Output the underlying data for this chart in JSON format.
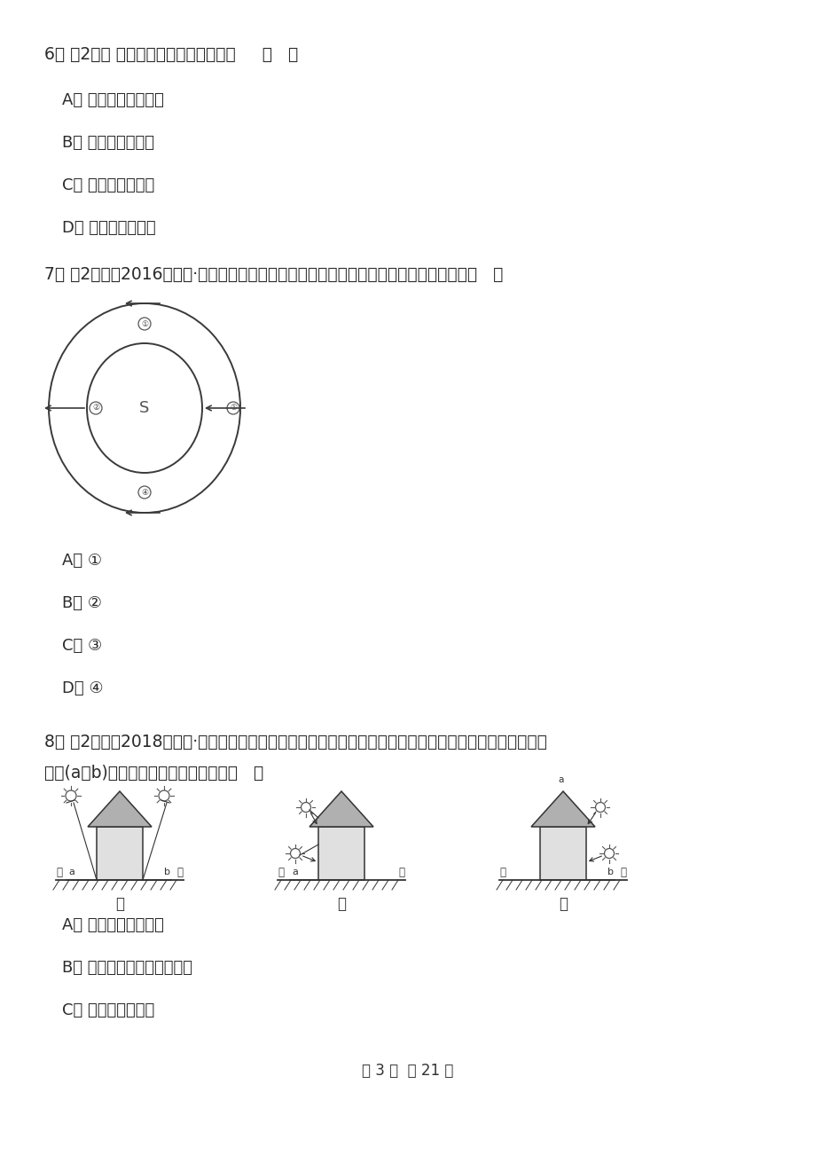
{
  "bg_color": "#ffffff",
  "text_color": "#2a2a2a",
  "q6_text": "6． （2分） 地球内部圈层划分的依据是     （   ）",
  "q6_a": "A． 地震波速度的变化",
  "q6_b": "B． 温度的垂直变化",
  "q6_c": "C． 内部压力的变化",
  "q6_d": "D． 物质密度的变化",
  "q7_text": "7． （2分）（2016高二下·湖南期中）读南极上空俧视图，四个平行箭头中指向东方的是（   ）",
  "q7_a": "A． ①",
  "q7_b": "B． ②",
  "q7_c": "C． ③",
  "q7_d": "D． ④",
  "q8_line1": "8． （2分）（2018高一上·张掘期末）甲、乙、丙是三幅地处不同纬度的三座房屋在二至日的正午阳光照射",
  "q8_line2": "情况(a或b)，对三地位置判断正确的是（   ）",
  "q8_a": "A． 三地都位于北半球",
  "q8_b": "B． 甲地位于南北回归线之间",
  "q8_c": "C． 乙地位于南温带",
  "footer": "第 3 页  共 21 页",
  "label_jia": "甲",
  "label_yi": "乙",
  "label_bing": "丙",
  "label_nan": "南",
  "label_bei": "北",
  "label_S": "S"
}
